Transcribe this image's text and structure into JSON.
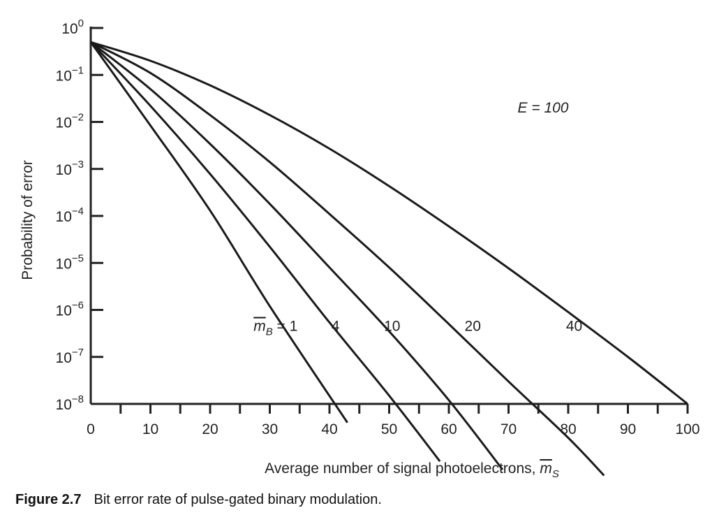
{
  "chart_data": {
    "type": "line",
    "xlabel_prefix": "Average number of signal photoelectrons, ",
    "xlabel_symbol": "m",
    "xlabel_sub": "S",
    "ylabel": "Probability of error",
    "xlim": [
      0,
      100
    ],
    "ylim_log10": [
      -8,
      0
    ],
    "yscale": "log",
    "x_ticks": [
      0,
      10,
      20,
      30,
      40,
      50,
      60,
      70,
      80,
      90,
      100
    ],
    "x_tick_labels": [
      "0",
      "10",
      "20",
      "30",
      "40",
      "50",
      "60",
      "70",
      "80",
      "90",
      "100"
    ],
    "y_ticks": [
      {
        "base": "10",
        "exp": "0"
      },
      {
        "base": "10",
        "exp": "−1"
      },
      {
        "base": "10",
        "exp": "−2"
      },
      {
        "base": "10",
        "exp": "−3"
      },
      {
        "base": "10",
        "exp": "−4"
      },
      {
        "base": "10",
        "exp": "−5"
      },
      {
        "base": "10",
        "exp": "−6"
      },
      {
        "base": "10",
        "exp": "−7"
      },
      {
        "base": "10",
        "exp": "−8"
      }
    ],
    "annotation_E": "E = 100",
    "series_label_prefix": "m",
    "series_label_sub": "B",
    "series": [
      {
        "name": "1",
        "label": "= 1",
        "points": [
          [
            0,
            0.5
          ],
          [
            10,
            0.0084
          ],
          [
            20,
            0.00013
          ],
          [
            30,
            1.2e-06
          ],
          [
            43,
            4e-09
          ]
        ]
      },
      {
        "name": "4",
        "label": "4",
        "points": [
          [
            0,
            0.5
          ],
          [
            10,
            0.022
          ],
          [
            20,
            0.00078
          ],
          [
            30,
            2.2e-05
          ],
          [
            40,
            5.4e-07
          ],
          [
            50,
            1.5e-08
          ],
          [
            58.5,
            6e-10
          ]
        ]
      },
      {
        "name": "10",
        "label": "10",
        "points": [
          [
            0,
            0.5
          ],
          [
            10,
            0.05
          ],
          [
            20,
            0.0034
          ],
          [
            30,
            0.00018
          ],
          [
            40,
            8e-06
          ],
          [
            50,
            3.5e-07
          ],
          [
            60,
            1.2e-08
          ],
          [
            69,
            4e-10
          ]
        ]
      },
      {
        "name": "20",
        "label": "20",
        "points": [
          [
            0,
            0.5
          ],
          [
            10,
            0.11
          ],
          [
            20,
            0.014
          ],
          [
            30,
            0.0014
          ],
          [
            40,
            0.00011
          ],
          [
            50,
            8e-06
          ],
          [
            60,
            5e-07
          ],
          [
            70,
            3e-08
          ],
          [
            80,
            1.9e-09
          ],
          [
            86,
            3e-10
          ]
        ]
      },
      {
        "name": "40",
        "label": "40",
        "points": [
          [
            0,
            0.5
          ],
          [
            10,
            0.2
          ],
          [
            20,
            0.06
          ],
          [
            30,
            0.014
          ],
          [
            40,
            0.0027
          ],
          [
            50,
            0.00043
          ],
          [
            60,
            6e-05
          ],
          [
            70,
            7.7e-06
          ],
          [
            80,
            9e-07
          ],
          [
            90,
            1e-07
          ],
          [
            100,
            1e-08
          ]
        ]
      }
    ],
    "series_label_positions": [
      {
        "x": 30.5,
        "y": 1e-06
      },
      {
        "x": 41.0,
        "y": 1e-06
      },
      {
        "x": 50.5,
        "y": 1e-06
      },
      {
        "x": 64.0,
        "y": 1e-06
      },
      {
        "x": 81.0,
        "y": 1e-06
      }
    ],
    "grid": false,
    "legend": "none",
    "line_color": "#1a1a1a"
  },
  "caption": {
    "number": "Figure 2.7",
    "text": "Bit error rate of pulse-gated binary modulation."
  }
}
